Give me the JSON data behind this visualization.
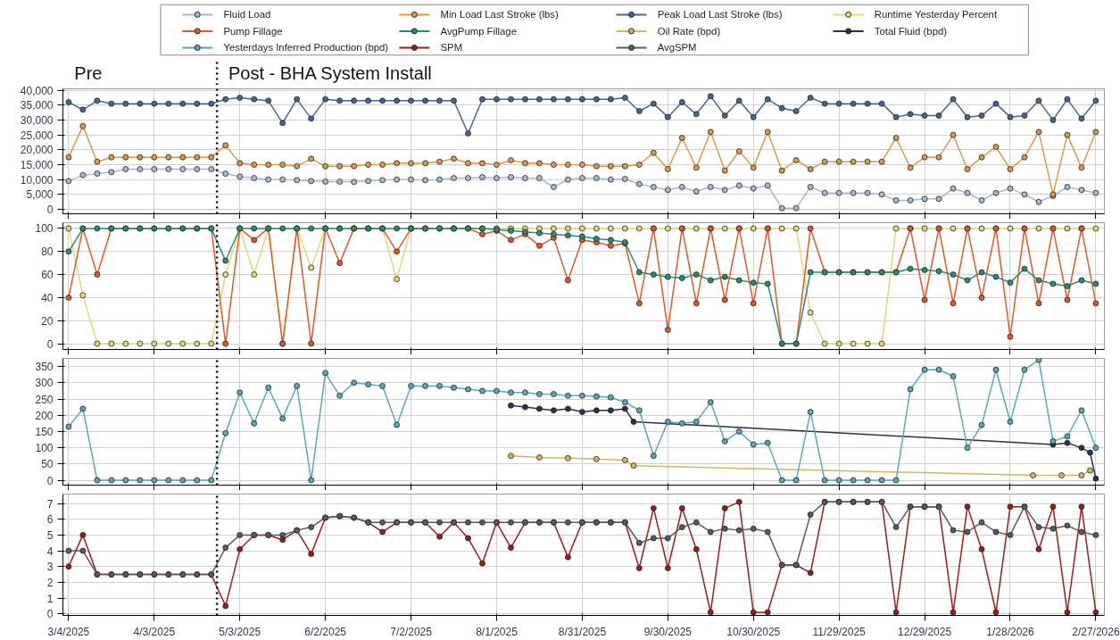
{
  "chart_data": [
    {
      "type": "line",
      "marker": "circle",
      "line_style": "solid",
      "grid": true,
      "legend": "top",
      "tick_labels": "y",
      "annotations": [
        "Pre",
        "Post - BHA System Install"
      ],
      "ref_lines": [
        {
          "axis": "x",
          "value": "2025-04-25",
          "color": "#000000",
          "line_style": "dotted"
        }
      ],
      "xlim": [
        "2025-03-02",
        "2026-03-02"
      ],
      "ylim": [
        -1500,
        40500
      ],
      "xticks": [
        {
          "value": "2025-03-04",
          "label": null
        },
        {
          "value": "2025-04-03",
          "label": null
        },
        {
          "value": "2025-05-03",
          "label": null
        },
        {
          "value": "2025-06-02",
          "label": null
        },
        {
          "value": "2025-07-02",
          "label": null
        },
        {
          "value": "2025-08-01",
          "label": null
        },
        {
          "value": "2025-08-31",
          "label": null
        },
        {
          "value": "2025-09-30",
          "label": null
        },
        {
          "value": "2025-10-30",
          "label": null
        },
        {
          "value": "2025-11-29",
          "label": null
        },
        {
          "value": "2025-12-29",
          "label": null
        },
        {
          "value": "2026-01-28",
          "label": null
        },
        {
          "value": "2026-02-27",
          "label": null
        }
      ],
      "yticks": [
        0,
        {
          "value": 5000,
          "label": "5,000"
        },
        {
          "value": 10000,
          "label": "10,000"
        },
        {
          "value": 15000,
          "label": "15,000"
        },
        {
          "value": 20000,
          "label": "20,000"
        },
        {
          "value": 25000,
          "label": "25,000"
        },
        {
          "value": 30000,
          "label": "30,000"
        },
        {
          "value": 35000,
          "label": "35,000"
        },
        {
          "value": 40000,
          "label": "40,000"
        }
      ],
      "x": [
        "2025-03-04",
        "2025-03-09",
        "2025-03-14",
        "2025-03-19",
        "2025-03-24",
        "2025-03-29",
        "2025-04-03",
        "2025-04-08",
        "2025-04-13",
        "2025-04-18",
        "2025-04-23",
        "2025-04-28",
        "2025-05-03",
        "2025-05-08",
        "2025-05-13",
        "2025-05-18",
        "2025-05-23",
        "2025-05-28",
        "2025-06-02",
        "2025-06-07",
        "2025-06-12",
        "2025-06-17",
        "2025-06-22",
        "2025-06-27",
        "2025-07-02",
        "2025-07-07",
        "2025-07-12",
        "2025-07-17",
        "2025-07-22",
        "2025-07-27",
        "2025-08-01",
        "2025-08-06",
        "2025-08-11",
        "2025-08-16",
        "2025-08-21",
        "2025-08-26",
        "2025-08-31",
        "2025-09-05",
        "2025-09-10",
        "2025-09-15",
        "2025-09-20",
        "2025-09-25",
        "2025-09-30",
        "2025-10-05",
        "2025-10-10",
        "2025-10-15",
        "2025-10-20",
        "2025-10-25",
        "2025-10-30",
        "2025-11-04",
        "2025-11-09",
        "2025-11-14",
        "2025-11-19",
        "2025-11-24",
        "2025-11-29",
        "2025-12-04",
        "2025-12-09",
        "2025-12-14",
        "2025-12-19",
        "2025-12-24",
        "2025-12-29",
        "2026-01-03",
        "2026-01-08",
        "2026-01-13",
        "2026-01-18",
        "2026-01-23",
        "2026-01-28",
        "2026-02-02",
        "2026-02-07",
        "2026-02-12",
        "2026-02-17",
        "2026-02-22",
        "2026-02-27"
      ],
      "series": [
        {
          "name": "Fluid Load",
          "color": "#a7b9cc",
          "values": [
            9500,
            11500,
            12000,
            12500,
            13500,
            13500,
            13500,
            13500,
            13500,
            13500,
            13500,
            12000,
            11000,
            10500,
            10000,
            10000,
            9800,
            9500,
            9300,
            9300,
            9200,
            9500,
            9800,
            10000,
            10000,
            9800,
            10000,
            10500,
            10500,
            10800,
            10500,
            10800,
            10500,
            10500,
            7500,
            10000,
            10500,
            10500,
            10000,
            10200,
            8500,
            7500,
            6500,
            7500,
            6000,
            7500,
            6500,
            8000,
            7000,
            8000,
            400,
            400,
            7500,
            5500,
            5500,
            5500,
            5500,
            5000,
            3000,
            3000,
            3500,
            3500,
            7000,
            5500,
            3000,
            5500,
            7000,
            5000,
            2500,
            4500,
            7500,
            6500,
            5500
          ]
        },
        {
          "name": "Min Load Last Stroke (lbs)",
          "color": "#d99a4e",
          "values": [
            17500,
            28000,
            16000,
            17500,
            17500,
            17500,
            17500,
            17500,
            17500,
            17500,
            17500,
            21500,
            15500,
            15000,
            15000,
            15000,
            14500,
            17000,
            14500,
            14500,
            14500,
            15000,
            15000,
            15500,
            15500,
            15500,
            16000,
            17000,
            15500,
            15500,
            15000,
            16500,
            15500,
            15500,
            15000,
            15000,
            15000,
            14500,
            14500,
            14500,
            15000,
            19000,
            13500,
            24000,
            14000,
            26000,
            13000,
            19500,
            14000,
            26000,
            13000,
            16500,
            13500,
            16000,
            16000,
            16000,
            16000,
            16000,
            24000,
            14000,
            17500,
            17500,
            25000,
            13500,
            17500,
            21000,
            13500,
            17500,
            26000,
            5000,
            25000,
            14000,
            26000
          ]
        },
        {
          "name": "Peak Load Last Stroke (lbs)",
          "color": "#4a6491",
          "values": [
            36000,
            33500,
            36500,
            35500,
            35500,
            35500,
            35500,
            35500,
            35500,
            35500,
            35500,
            37000,
            37500,
            37000,
            36500,
            29000,
            37000,
            30500,
            37000,
            36500,
            36500,
            36500,
            36500,
            36500,
            36500,
            36500,
            36500,
            36500,
            25500,
            37000,
            37000,
            37000,
            37000,
            37000,
            37000,
            37000,
            37000,
            37000,
            37000,
            37500,
            33000,
            35500,
            31000,
            36000,
            32000,
            38000,
            31500,
            36500,
            31000,
            37000,
            34000,
            33000,
            37500,
            35500,
            35500,
            35500,
            35500,
            35500,
            31000,
            32000,
            31500,
            31500,
            37000,
            31000,
            31500,
            35500,
            31000,
            31500,
            36500,
            30000,
            37000,
            30500,
            36500
          ]
        }
      ]
    },
    {
      "type": "line",
      "marker": "circle",
      "line_style": "solid",
      "grid": true,
      "legend": "top",
      "tick_labels": "y",
      "ref_lines": [
        {
          "axis": "x",
          "value": "2025-04-25",
          "color": "#000000",
          "line_style": "dotted"
        }
      ],
      "xlim": [
        "2025-03-02",
        "2026-03-02"
      ],
      "ylim": [
        -5,
        105
      ],
      "xticks": [
        {
          "value": "2025-03-04",
          "label": null
        },
        {
          "value": "2025-04-03",
          "label": null
        },
        {
          "value": "2025-05-03",
          "label": null
        },
        {
          "value": "2025-06-02",
          "label": null
        },
        {
          "value": "2025-07-02",
          "label": null
        },
        {
          "value": "2025-08-01",
          "label": null
        },
        {
          "value": "2025-08-31",
          "label": null
        },
        {
          "value": "2025-09-30",
          "label": null
        },
        {
          "value": "2025-10-30",
          "label": null
        },
        {
          "value": "2025-11-29",
          "label": null
        },
        {
          "value": "2025-12-29",
          "label": null
        },
        {
          "value": "2026-01-28",
          "label": null
        },
        {
          "value": "2026-02-27",
          "label": null
        }
      ],
      "yticks": [
        0,
        20,
        40,
        60,
        80,
        100
      ],
      "x": [
        "2025-03-04",
        "2025-03-09",
        "2025-03-14",
        "2025-03-19",
        "2025-03-24",
        "2025-03-29",
        "2025-04-03",
        "2025-04-08",
        "2025-04-13",
        "2025-04-18",
        "2025-04-23",
        "2025-04-28",
        "2025-05-03",
        "2025-05-08",
        "2025-05-13",
        "2025-05-18",
        "2025-05-23",
        "2025-05-28",
        "2025-06-02",
        "2025-06-07",
        "2025-06-12",
        "2025-06-17",
        "2025-06-22",
        "2025-06-27",
        "2025-07-02",
        "2025-07-07",
        "2025-07-12",
        "2025-07-17",
        "2025-07-22",
        "2025-07-27",
        "2025-08-01",
        "2025-08-06",
        "2025-08-11",
        "2025-08-16",
        "2025-08-21",
        "2025-08-26",
        "2025-08-31",
        "2025-09-05",
        "2025-09-10",
        "2025-09-15",
        "2025-09-20",
        "2025-09-25",
        "2025-09-30",
        "2025-10-05",
        "2025-10-10",
        "2025-10-15",
        "2025-10-20",
        "2025-10-25",
        "2025-10-30",
        "2025-11-04",
        "2025-11-09",
        "2025-11-14",
        "2025-11-19",
        "2025-11-24",
        "2025-11-29",
        "2025-12-04",
        "2025-12-09",
        "2025-12-14",
        "2025-12-19",
        "2025-12-24",
        "2025-12-29",
        "2026-01-03",
        "2026-01-08",
        "2026-01-13",
        "2026-01-18",
        "2026-01-23",
        "2026-01-28",
        "2026-02-02",
        "2026-02-07",
        "2026-02-12",
        "2026-02-17",
        "2026-02-22",
        "2026-02-27"
      ],
      "series": [
        {
          "name": "Runtime Yesterday Percent",
          "color": "#e6d77a",
          "values": [
            100,
            42,
            0,
            0,
            0,
            0,
            0,
            0,
            0,
            0,
            0,
            60,
            100,
            60,
            100,
            0,
            100,
            66,
            100,
            100,
            100,
            100,
            100,
            56,
            100,
            100,
            100,
            100,
            100,
            100,
            100,
            100,
            100,
            100,
            100,
            100,
            100,
            100,
            100,
            100,
            100,
            100,
            100,
            100,
            100,
            100,
            100,
            100,
            100,
            100,
            100,
            100,
            27,
            0,
            0,
            0,
            0,
            0,
            100,
            100,
            100,
            100,
            100,
            100,
            100,
            100,
            100,
            100,
            100,
            100,
            100,
            100,
            100
          ]
        },
        {
          "name": "Pump Fillage",
          "color": "#e0582a",
          "values": [
            40,
            100,
            60,
            100,
            100,
            100,
            100,
            100,
            100,
            100,
            100,
            0,
            100,
            90,
            100,
            0,
            100,
            0,
            100,
            70,
            100,
            100,
            100,
            80,
            100,
            100,
            100,
            100,
            100,
            95,
            98,
            90,
            95,
            85,
            92,
            55,
            90,
            88,
            85,
            87,
            35,
            100,
            12,
            100,
            35,
            100,
            38,
            100,
            35,
            100,
            0,
            0,
            100,
            62,
            62,
            62,
            62,
            62,
            62,
            100,
            38,
            100,
            35,
            100,
            40,
            100,
            6,
            100,
            35,
            100,
            38,
            100,
            35
          ]
        },
        {
          "name": "AvgPump Fillage",
          "color": "#2e8b72",
          "values": [
            80,
            100,
            100,
            100,
            100,
            100,
            100,
            100,
            100,
            100,
            100,
            72,
            100,
            100,
            100,
            100,
            100,
            100,
            100,
            100,
            100,
            100,
            100,
            100,
            100,
            100,
            100,
            100,
            100,
            100,
            99,
            98,
            97,
            96,
            95,
            94,
            93,
            91,
            90,
            88,
            62,
            60,
            58,
            57,
            60,
            55,
            58,
            55,
            53,
            52,
            0,
            0,
            62,
            62,
            62,
            62,
            62,
            62,
            62,
            65,
            64,
            63,
            60,
            55,
            62,
            58,
            53,
            65,
            55,
            52,
            50,
            55,
            52
          ]
        }
      ]
    },
    {
      "type": "line",
      "marker": "circle",
      "line_style": "solid",
      "grid": true,
      "legend": "top",
      "tick_labels": "y",
      "ref_lines": [
        {
          "axis": "x",
          "value": "2025-04-25",
          "color": "#000000",
          "line_style": "dotted"
        }
      ],
      "xlim": [
        "2025-03-02",
        "2026-03-02"
      ],
      "ylim": [
        -15,
        375
      ],
      "xticks": [
        {
          "value": "2025-03-04",
          "label": null
        },
        {
          "value": "2025-04-03",
          "label": null
        },
        {
          "value": "2025-05-03",
          "label": null
        },
        {
          "value": "2025-06-02",
          "label": null
        },
        {
          "value": "2025-07-02",
          "label": null
        },
        {
          "value": "2025-08-01",
          "label": null
        },
        {
          "value": "2025-08-31",
          "label": null
        },
        {
          "value": "2025-09-30",
          "label": null
        },
        {
          "value": "2025-10-30",
          "label": null
        },
        {
          "value": "2025-11-29",
          "label": null
        },
        {
          "value": "2025-12-29",
          "label": null
        },
        {
          "value": "2026-01-28",
          "label": null
        },
        {
          "value": "2026-02-27",
          "label": null
        }
      ],
      "yticks": [
        0,
        50,
        100,
        150,
        200,
        250,
        300,
        350
      ],
      "x": [
        "2025-03-04",
        "2025-03-09",
        "2025-03-14",
        "2025-03-19",
        "2025-03-24",
        "2025-03-29",
        "2025-04-03",
        "2025-04-08",
        "2025-04-13",
        "2025-04-18",
        "2025-04-23",
        "2025-04-28",
        "2025-05-03",
        "2025-05-08",
        "2025-05-13",
        "2025-05-18",
        "2025-05-23",
        "2025-05-28",
        "2025-06-02",
        "2025-06-07",
        "2025-06-12",
        "2025-06-17",
        "2025-06-22",
        "2025-06-27",
        "2025-07-02",
        "2025-07-07",
        "2025-07-12",
        "2025-07-17",
        "2025-07-22",
        "2025-07-27",
        "2025-08-01",
        "2025-08-06",
        "2025-08-11",
        "2025-08-16",
        "2025-08-21",
        "2025-08-26",
        "2025-08-31",
        "2025-09-05",
        "2025-09-10",
        "2025-09-15",
        "2025-09-20",
        "2025-09-25",
        "2025-09-30",
        "2025-10-05",
        "2025-10-10",
        "2025-10-15",
        "2025-10-20",
        "2025-10-25",
        "2025-10-30",
        "2025-11-04",
        "2025-11-09",
        "2025-11-14",
        "2025-11-19",
        "2025-11-24",
        "2025-11-29",
        "2025-12-04",
        "2025-12-09",
        "2025-12-14",
        "2025-12-19",
        "2025-12-24",
        "2025-12-29",
        "2026-01-03",
        "2026-01-08",
        "2026-01-13",
        "2026-01-18",
        "2026-01-23",
        "2026-01-28",
        "2026-02-02",
        "2026-02-07",
        "2026-02-12",
        "2026-02-17",
        "2026-02-22",
        "2026-02-27"
      ],
      "series": [
        {
          "name": "Oil Rate (bpd)",
          "color": "#d4b55a",
          "x": [
            "2025-08-06",
            "2025-08-16",
            "2025-08-26",
            "2025-09-05",
            "2025-09-15",
            "2025-09-18",
            "2026-02-05",
            "2026-02-15",
            "2026-02-22",
            "2026-02-25"
          ],
          "values": [
            75,
            70,
            68,
            65,
            62,
            45,
            15,
            15,
            15,
            30
          ]
        },
        {
          "name": "Total Fluid (bpd)",
          "color": "#2b2f4e",
          "x": [
            "2025-08-06",
            "2025-08-11",
            "2025-08-16",
            "2025-08-21",
            "2025-08-26",
            "2025-08-31",
            "2025-09-05",
            "2025-09-10",
            "2025-09-15",
            "2025-09-18",
            "2026-02-12",
            "2026-02-17",
            "2026-02-22",
            "2026-02-25",
            "2026-02-27"
          ],
          "values": [
            230,
            225,
            220,
            215,
            220,
            210,
            215,
            215,
            220,
            180,
            110,
            115,
            100,
            85,
            5
          ]
        },
        {
          "name": "Yesterdays Inferred Production (bpd)",
          "color": "#5ba7b5",
          "values": [
            165,
            220,
            0,
            0,
            0,
            0,
            0,
            0,
            0,
            0,
            0,
            145,
            270,
            175,
            285,
            190,
            290,
            0,
            330,
            260,
            300,
            295,
            290,
            170,
            290,
            290,
            290,
            285,
            280,
            275,
            275,
            270,
            270,
            265,
            265,
            260,
            260,
            258,
            255,
            240,
            215,
            75,
            180,
            175,
            180,
            240,
            120,
            150,
            110,
            115,
            0,
            0,
            210,
            0,
            0,
            0,
            0,
            0,
            0,
            280,
            340,
            340,
            320,
            100,
            170,
            340,
            180,
            340,
            370,
            120,
            135,
            215,
            100
          ]
        }
      ]
    },
    {
      "type": "line",
      "marker": "circle",
      "line_style": "solid",
      "grid": true,
      "legend": "top",
      "ref_lines": [
        {
          "axis": "x",
          "value": "2025-04-25",
          "color": "#000000",
          "line_style": "dotted"
        }
      ],
      "xlim": [
        "2025-03-02",
        "2026-03-02"
      ],
      "ylim": [
        -0.1,
        7.6
      ],
      "xticks": [
        {
          "value": "2025-03-04",
          "label": "3/4/2025"
        },
        {
          "value": "2025-04-03",
          "label": "4/3/2025"
        },
        {
          "value": "2025-05-03",
          "label": "5/3/2025"
        },
        {
          "value": "2025-06-02",
          "label": "6/2/2025"
        },
        {
          "value": "2025-07-02",
          "label": "7/2/2025"
        },
        {
          "value": "2025-08-01",
          "label": "8/1/2025"
        },
        {
          "value": "2025-08-31",
          "label": "8/31/2025"
        },
        {
          "value": "2025-09-30",
          "label": "9/30/2025"
        },
        {
          "value": "2025-10-30",
          "label": "10/30/2025"
        },
        {
          "value": "2025-11-29",
          "label": "11/29/2025"
        },
        {
          "value": "2025-12-29",
          "label": "12/29/2025"
        },
        {
          "value": "2026-01-28",
          "label": "1/28/2026"
        },
        {
          "value": "2026-02-27",
          "label": "2/27/2026"
        }
      ],
      "yticks": [
        0,
        1,
        2,
        3,
        4,
        5,
        6,
        7
      ],
      "x": [
        "2025-03-04",
        "2025-03-09",
        "2025-03-14",
        "2025-03-19",
        "2025-03-24",
        "2025-03-29",
        "2025-04-03",
        "2025-04-08",
        "2025-04-13",
        "2025-04-18",
        "2025-04-23",
        "2025-04-28",
        "2025-05-03",
        "2025-05-08",
        "2025-05-13",
        "2025-05-18",
        "2025-05-23",
        "2025-05-28",
        "2025-06-02",
        "2025-06-07",
        "2025-06-12",
        "2025-06-17",
        "2025-06-22",
        "2025-06-27",
        "2025-07-02",
        "2025-07-07",
        "2025-07-12",
        "2025-07-17",
        "2025-07-22",
        "2025-07-27",
        "2025-08-01",
        "2025-08-06",
        "2025-08-11",
        "2025-08-16",
        "2025-08-21",
        "2025-08-26",
        "2025-08-31",
        "2025-09-05",
        "2025-09-10",
        "2025-09-15",
        "2025-09-20",
        "2025-09-25",
        "2025-09-30",
        "2025-10-05",
        "2025-10-10",
        "2025-10-15",
        "2025-10-20",
        "2025-10-25",
        "2025-10-30",
        "2025-11-04",
        "2025-11-09",
        "2025-11-14",
        "2025-11-19",
        "2025-11-24",
        "2025-11-29",
        "2025-12-04",
        "2025-12-09",
        "2025-12-14",
        "2025-12-19",
        "2025-12-24",
        "2025-12-29",
        "2026-01-03",
        "2026-01-08",
        "2026-01-13",
        "2026-01-18",
        "2026-01-23",
        "2026-01-28",
        "2026-02-02",
        "2026-02-07",
        "2026-02-12",
        "2026-02-17",
        "2026-02-22",
        "2026-02-27"
      ],
      "series": [
        {
          "name": "SPM",
          "color": "#9b1c1c",
          "values": [
            3,
            5,
            2.5,
            2.5,
            2.5,
            2.5,
            2.5,
            2.5,
            2.5,
            2.5,
            2.5,
            0.5,
            4.1,
            5,
            5,
            4.7,
            5.3,
            3.8,
            6.1,
            6.2,
            6.1,
            5.8,
            5.2,
            5.8,
            5.8,
            5.8,
            4.9,
            5.8,
            4.8,
            3.2,
            5.8,
            4.2,
            5.8,
            5.8,
            5.8,
            3.6,
            5.8,
            5.8,
            5.8,
            5.8,
            2.9,
            6.7,
            2.9,
            6.7,
            4.1,
            0.1,
            6.7,
            7.1,
            0.1,
            0.1,
            3.1,
            3.1,
            2.6,
            7.1,
            7.1,
            7.1,
            7.1,
            7.1,
            0.1,
            6.8,
            6.8,
            6.8,
            0.1,
            6.8,
            4.1,
            0.1,
            6.8,
            6.8,
            4.1,
            6.8,
            0.1,
            6.8,
            0.1
          ]
        },
        {
          "name": "AvgSPM",
          "color": "#5a5a5a",
          "values": [
            4,
            4,
            2.5,
            2.5,
            2.5,
            2.5,
            2.5,
            2.5,
            2.5,
            2.5,
            2.5,
            4.2,
            5,
            5,
            5,
            5,
            5.3,
            5.5,
            6.1,
            6.2,
            6.1,
            5.8,
            5.8,
            5.8,
            5.8,
            5.8,
            5.8,
            5.8,
            5.8,
            5.8,
            5.8,
            5.8,
            5.8,
            5.8,
            5.8,
            5.8,
            5.8,
            5.8,
            5.8,
            5.8,
            4.5,
            4.8,
            4.8,
            5.5,
            5.8,
            5.2,
            5.4,
            5.3,
            5.4,
            5.2,
            3.1,
            3.1,
            6.3,
            7.1,
            7.1,
            7.1,
            7.1,
            7.1,
            5.5,
            6.8,
            6.8,
            6.8,
            5.3,
            5.2,
            5.8,
            5.2,
            5.0,
            6.8,
            5.5,
            5.4,
            5.6,
            5.2,
            5.0
          ]
        }
      ]
    }
  ]
}
